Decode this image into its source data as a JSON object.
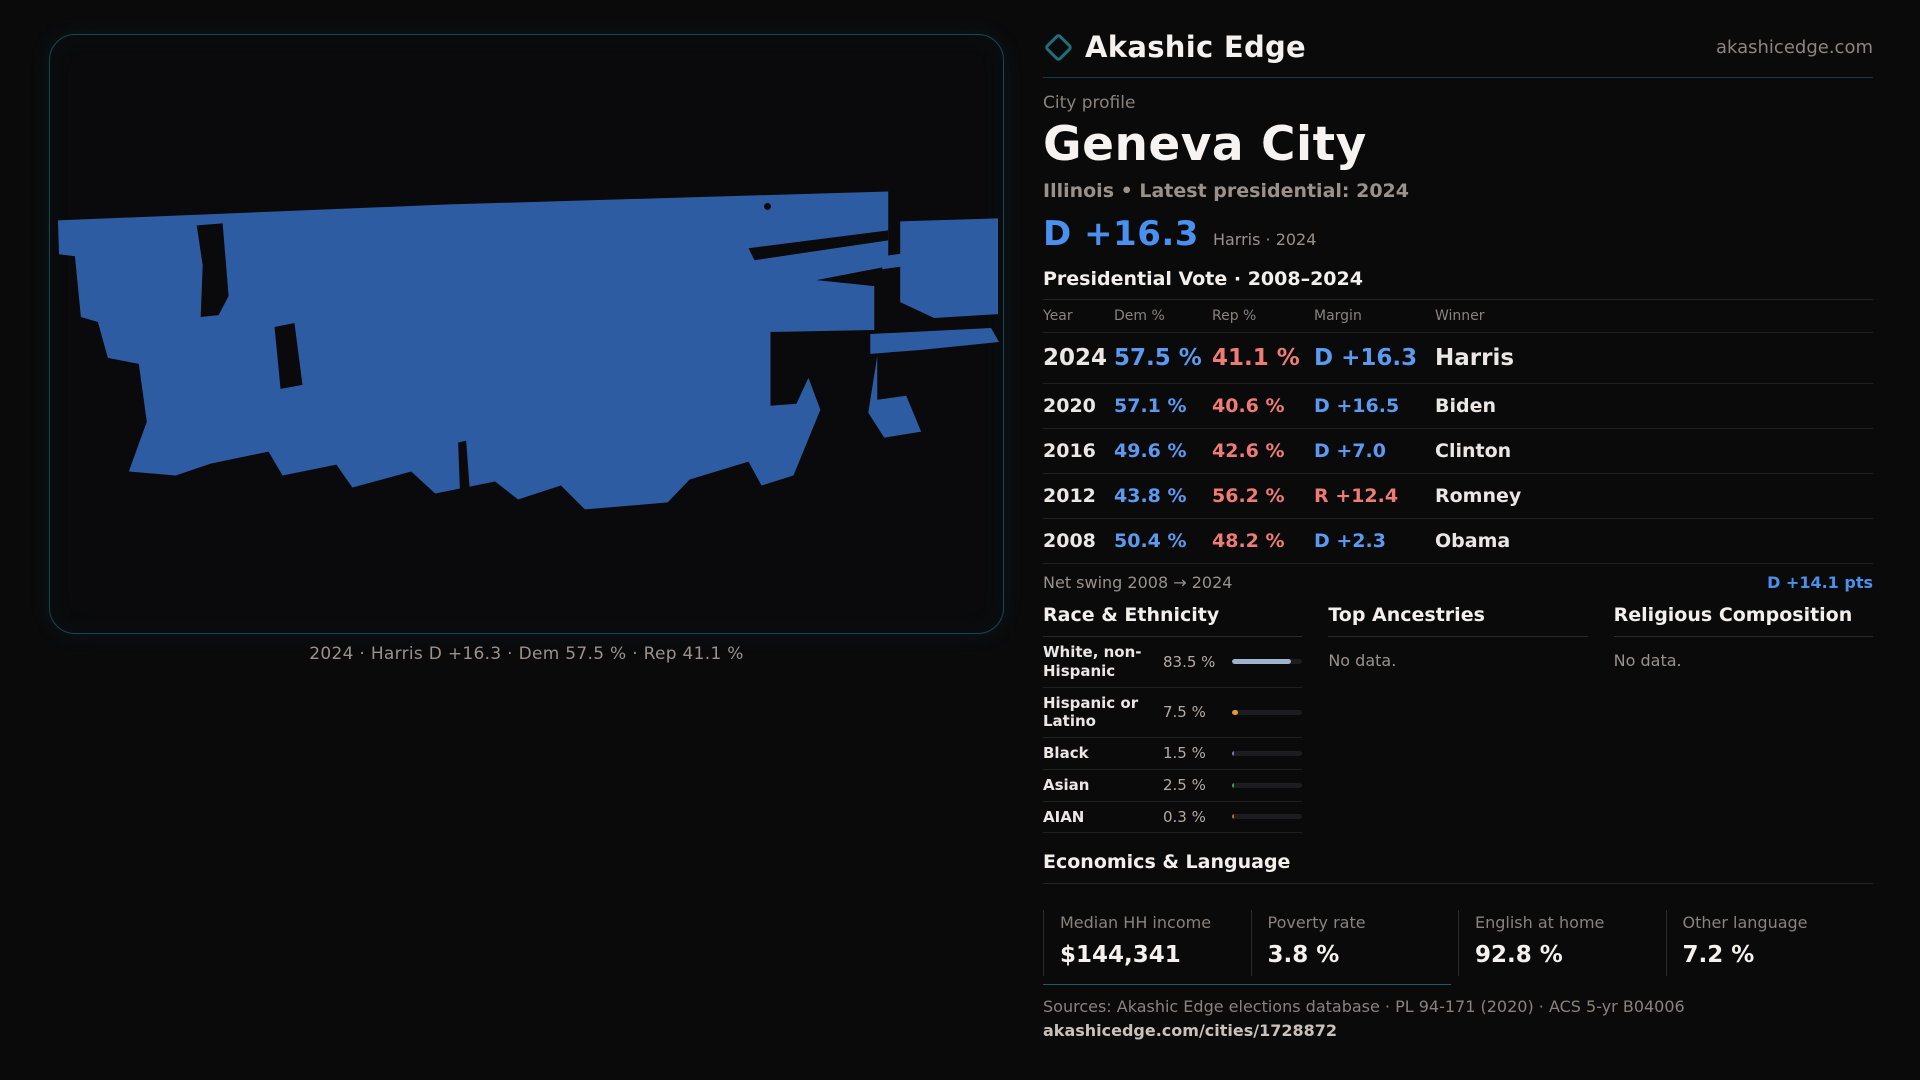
{
  "colors": {
    "hero_blue": "#4a90ee",
    "dem_blue": "#5b9af0",
    "rep_red": "#ee7b74",
    "accent_teal": "#1e6e7c",
    "accent_border": "#17474f",
    "map_fill": "#2e5ca3"
  },
  "brand": {
    "name": "Akashic Edge",
    "domain": "akashicedge.com"
  },
  "profile": {
    "kicker": "City profile",
    "title": "Geneva City",
    "subtitle": "Illinois • Latest presidential: 2024",
    "hero_margin": "D +16.3",
    "hero_context": "Harris · 2024"
  },
  "map": {
    "caption": "2024 · Harris D +16.3 · Dem 57.5 % · Rep 41.1 %"
  },
  "vote_table": {
    "title": "Presidential Vote · 2008–2024",
    "columns": {
      "year": "Year",
      "dem": "Dem %",
      "rep": "Rep %",
      "margin": "Margin",
      "winner": "Winner"
    },
    "rows": [
      {
        "year": "2024",
        "dem": "57.5 %",
        "rep": "41.1 %",
        "margin": "D +16.3",
        "margin_color": "#5b9af0",
        "winner": "Harris"
      },
      {
        "year": "2020",
        "dem": "57.1 %",
        "rep": "40.6 %",
        "margin": "D +16.5",
        "margin_color": "#5b9af0",
        "winner": "Biden"
      },
      {
        "year": "2016",
        "dem": "49.6 %",
        "rep": "42.6 %",
        "margin": "D +7.0",
        "margin_color": "#5b9af0",
        "winner": "Clinton"
      },
      {
        "year": "2012",
        "dem": "43.8 %",
        "rep": "56.2 %",
        "margin": "R +12.4",
        "margin_color": "#ee7b74",
        "winner": "Romney"
      },
      {
        "year": "2008",
        "dem": "50.4 %",
        "rep": "48.2 %",
        "margin": "D +2.3",
        "margin_color": "#5b9af0",
        "winner": "Obama"
      }
    ],
    "net_swing_label": "Net swing 2008 → 2024",
    "net_swing_value": "D +14.1 pts"
  },
  "race": {
    "title": "Race & Ethnicity",
    "rows": [
      {
        "label": "White, non-Hispanic",
        "value": "83.5 %",
        "pct": 83.5,
        "color": "#9fb3cc"
      },
      {
        "label": "Hispanic or Latino",
        "value": "7.5 %",
        "pct": 7.5,
        "color": "#e79b2f"
      },
      {
        "label": "Black",
        "value": "1.5 %",
        "pct": 1.5,
        "color": "#7d6fe0"
      },
      {
        "label": "Asian",
        "value": "2.5 %",
        "pct": 2.5,
        "color": "#2fa864"
      },
      {
        "label": "AIAN",
        "value": "0.3 %",
        "pct": 0.3,
        "color": "#c06a28"
      }
    ]
  },
  "ancestries": {
    "title": "Top Ancestries",
    "empty": "No data."
  },
  "religion": {
    "title": "Religious Composition",
    "empty": "No data."
  },
  "economics": {
    "title": "Economics & Language",
    "stats": [
      {
        "label": "Median HH income",
        "value": "$144,341"
      },
      {
        "label": "Poverty rate",
        "value": "3.8 %"
      },
      {
        "label": "English at home",
        "value": "92.8 %"
      },
      {
        "label": "Other language",
        "value": "7.2 %"
      }
    ]
  },
  "footer": {
    "sources": "Sources: Akashic Edge elections database · PL 94-171 (2020) · ACS 5-yr B04006",
    "permalink": "akashicedge.com/cities/1728872"
  }
}
